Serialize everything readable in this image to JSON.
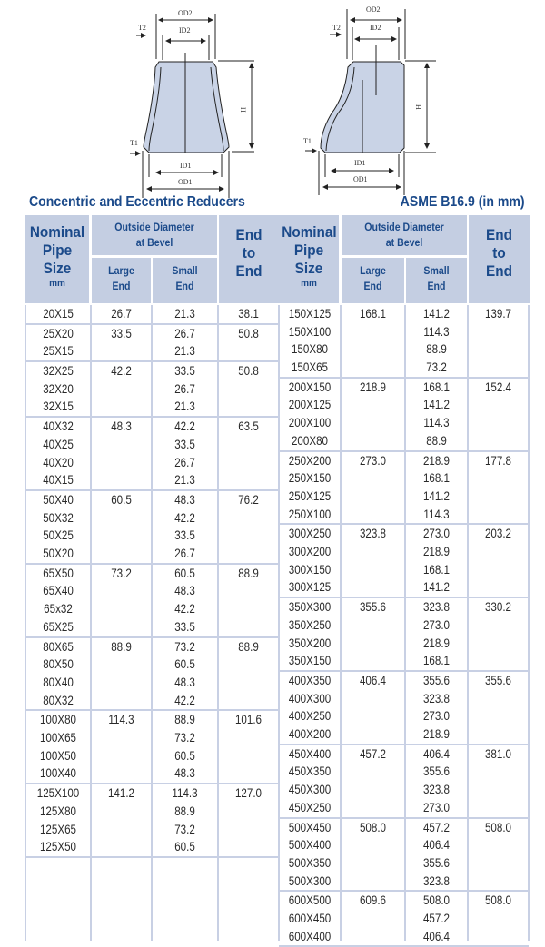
{
  "diagram_labels": {
    "od2": "OD2",
    "id2": "ID2",
    "t2": "T2",
    "h": "H",
    "t1": "T1",
    "id1": "ID1",
    "od1": "OD1"
  },
  "title": "Concentric and Eccentric Reducers",
  "standard": "ASME B16.9 (in mm)",
  "headers": {
    "nominal": [
      "Nominal",
      "Pipe",
      "Size"
    ],
    "unit": "mm",
    "od": [
      "Outside Diameter",
      "at Bevel"
    ],
    "large": [
      "Large",
      "End"
    ],
    "small": [
      "Small",
      "End"
    ],
    "end": [
      "End",
      "to",
      "End"
    ]
  },
  "colors": {
    "header_bg": "#c4cee2",
    "header_text": "#1b4a8a",
    "border": "#c8d0e4"
  },
  "left_groups": [
    {
      "nominal": [
        "20X15"
      ],
      "large": "26.7",
      "small": [
        "21.3"
      ],
      "end": "38.1"
    },
    {
      "nominal": [
        "25X20",
        "25X15"
      ],
      "large": "33.5",
      "small": [
        "26.7",
        "21.3"
      ],
      "end": "50.8"
    },
    {
      "nominal": [
        "32X25",
        "32X20",
        "32X15"
      ],
      "large": "42.2",
      "small": [
        "33.5",
        "26.7",
        "21.3"
      ],
      "end": "50.8"
    },
    {
      "nominal": [
        "40X32",
        "40X25",
        "40X20",
        "40X15"
      ],
      "large": "48.3",
      "small": [
        "42.2",
        "33.5",
        "26.7",
        "21.3"
      ],
      "end": "63.5"
    },
    {
      "nominal": [
        "50X40",
        "50X32",
        "50X25",
        "50X20"
      ],
      "large": "60.5",
      "small": [
        "48.3",
        "42.2",
        "33.5",
        "26.7"
      ],
      "end": "76.2"
    },
    {
      "nominal": [
        "65X50",
        "65X40",
        "65x32",
        "65X25"
      ],
      "large": "73.2",
      "small": [
        "60.5",
        "48.3",
        "42.2",
        "33.5"
      ],
      "end": "88.9"
    },
    {
      "nominal": [
        "80X65",
        "80X50",
        "80X40",
        "80X32"
      ],
      "large": "88.9",
      "small": [
        "73.2",
        "60.5",
        "48.3",
        "42.2"
      ],
      "end": "88.9"
    },
    {
      "nominal": [
        "100X80",
        "100X65",
        "100X50",
        "100X40"
      ],
      "large": "114.3",
      "small": [
        "88.9",
        "73.2",
        "60.5",
        "48.3"
      ],
      "end": "101.6"
    },
    {
      "nominal": [
        "125X100",
        "125X80",
        "125X65",
        "125X50"
      ],
      "large": "141.2",
      "small": [
        "114.3",
        "88.9",
        "73.2",
        "60.5"
      ],
      "end": "127.0"
    }
  ],
  "right_groups": [
    {
      "nominal": [
        "150X125",
        "150X100",
        "150X80",
        "150X65"
      ],
      "large": "168.1",
      "small": [
        "141.2",
        "114.3",
        "88.9",
        "73.2"
      ],
      "end": "139.7"
    },
    {
      "nominal": [
        "200X150",
        "200X125",
        "200X100",
        "200X80"
      ],
      "large": "218.9",
      "small": [
        "168.1",
        "141.2",
        "114.3",
        "88.9"
      ],
      "end": "152.4"
    },
    {
      "nominal": [
        "250X200",
        "250X150",
        "250X125",
        "250X100"
      ],
      "large": "273.0",
      "small": [
        "218.9",
        "168.1",
        "141.2",
        "114.3"
      ],
      "end": "177.8"
    },
    {
      "nominal": [
        "300X250",
        "300X200",
        "300X150",
        "300X125"
      ],
      "large": "323.8",
      "small": [
        "273.0",
        "218.9",
        "168.1",
        "141.2"
      ],
      "end": "203.2"
    },
    {
      "nominal": [
        "350X300",
        "350X250",
        "350X200",
        "350X150"
      ],
      "large": "355.6",
      "small": [
        "323.8",
        "273.0",
        "218.9",
        "168.1"
      ],
      "end": "330.2"
    },
    {
      "nominal": [
        "400X350",
        "400X300",
        "400X250",
        "400X200"
      ],
      "large": "406.4",
      "small": [
        "355.6",
        "323.8",
        "273.0",
        "218.9"
      ],
      "end": "355.6"
    },
    {
      "nominal": [
        "450X400",
        "450X350",
        "450X300",
        "450X250"
      ],
      "large": "457.2",
      "small": [
        "406.4",
        "355.6",
        "323.8",
        "273.0"
      ],
      "end": "381.0"
    },
    {
      "nominal": [
        "500X450",
        "500X400",
        "500X350",
        "500X300"
      ],
      "large": "508.0",
      "small": [
        "457.2",
        "406.4",
        "355.6",
        "323.8"
      ],
      "end": "508.0"
    },
    {
      "nominal": [
        "600X500",
        "600X450",
        "600X400"
      ],
      "large": "609.6",
      "small": [
        "508.0",
        "457.2",
        "406.4"
      ],
      "end": "508.0"
    }
  ]
}
